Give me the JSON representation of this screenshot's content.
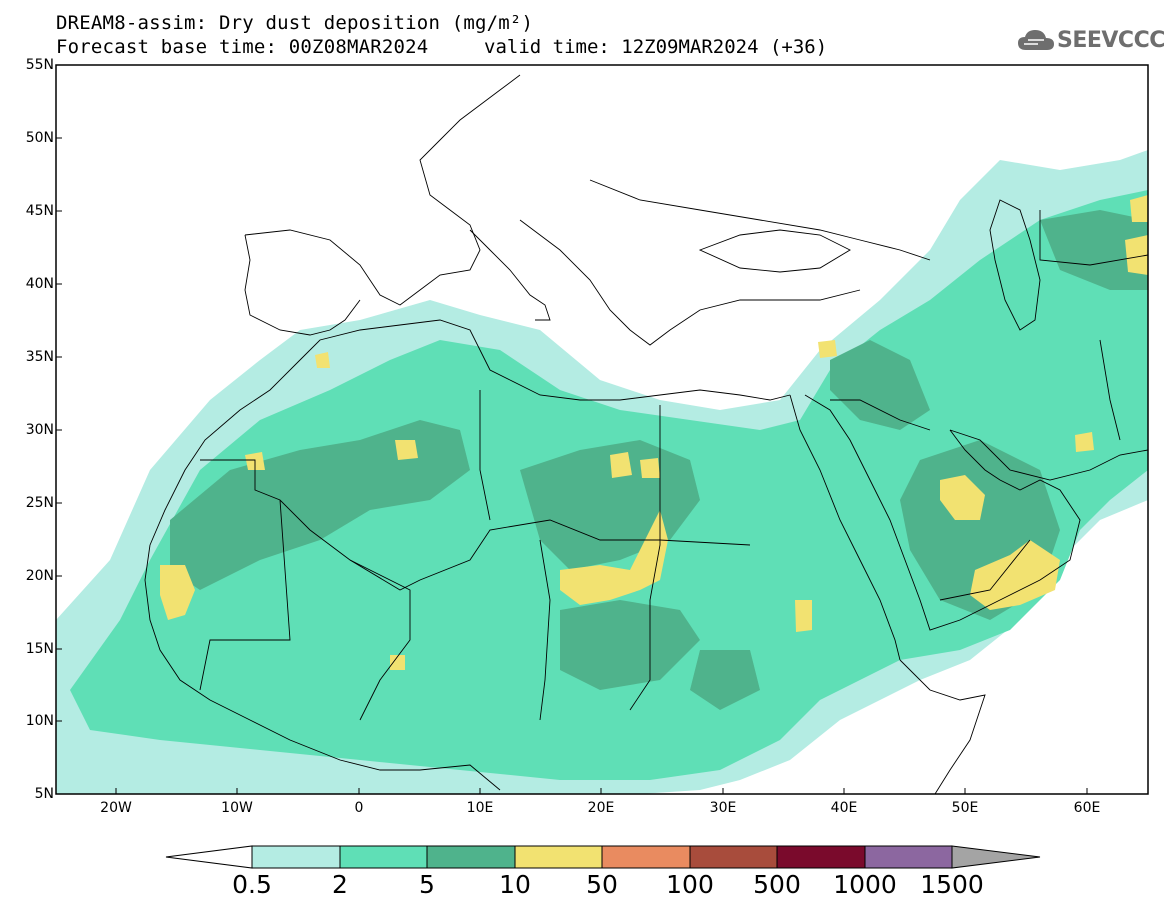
{
  "header": {
    "title": "DREAM8-assim: Dry dust deposition (mg/m²)",
    "base_time": "Forecast base time: 00Z08MAR2024",
    "valid_time": "valid time: 12Z09MAR2024 (+36)",
    "logo_text": "SEEVCCC",
    "logo_icon": "cloud-icon"
  },
  "map": {
    "extent": {
      "lon_min": -25,
      "lon_max": 65,
      "lat_min": 5,
      "lat_max": 55
    },
    "lat_labels": [
      "55N",
      "50N",
      "45N",
      "40N",
      "35N",
      "30N",
      "25N",
      "20N",
      "15N",
      "10N",
      "5N"
    ],
    "lon_labels": [
      "20W",
      "10W",
      "0",
      "10E",
      "20E",
      "30E",
      "40E",
      "50E",
      "60E"
    ],
    "colors": {
      "ocean": "#ffffff",
      "border": "#000000"
    }
  },
  "colorbar": {
    "labels": [
      "0.5",
      "2",
      "5",
      "10",
      "50",
      "100",
      "500",
      "1000",
      "1500"
    ],
    "colors": [
      "#b4ece3",
      "#5fdfb6",
      "#4fb38c",
      "#f2e271",
      "#e98b60",
      "#a84c3c",
      "#7a0a2c",
      "#8c67a0",
      "#a4a4a4"
    ],
    "under_color": "#ffffff"
  }
}
